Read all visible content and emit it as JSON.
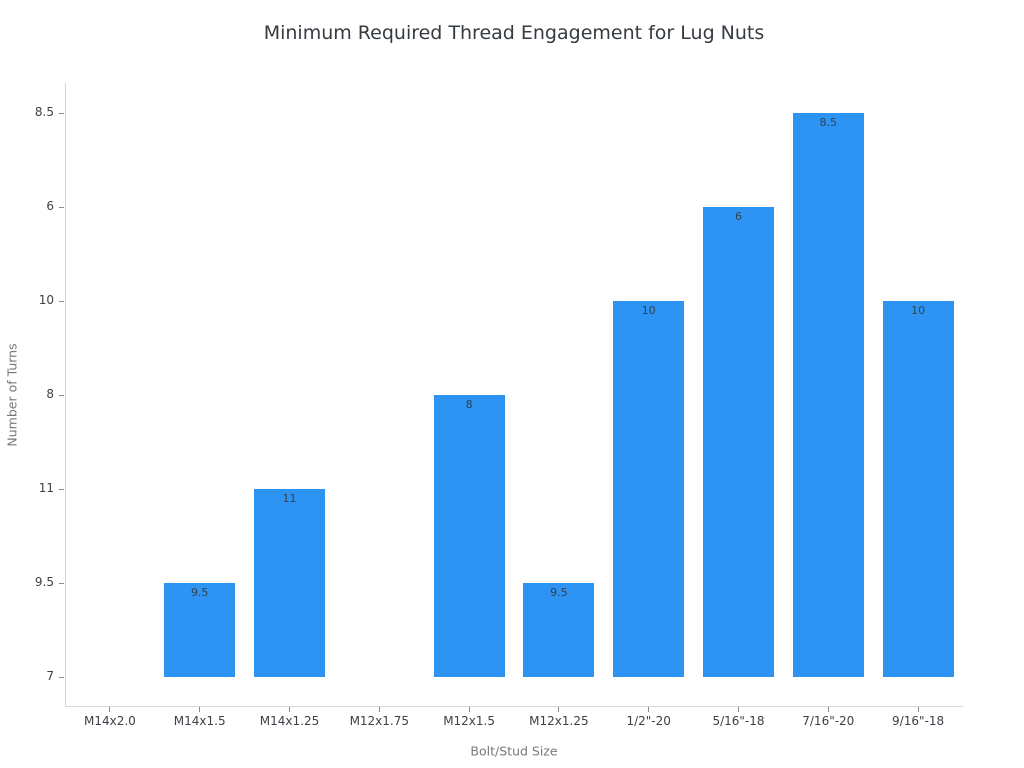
{
  "chart_data": {
    "type": "bar",
    "title": "Minimum Required Thread Engagement for Lug Nuts",
    "xlabel": "Bolt/Stud Size",
    "ylabel": "Number of Turns",
    "categories": [
      "M14x2.0",
      "M14x1.5",
      "M14x1.25",
      "M12x1.75",
      "M12x1.5",
      "M12x1.25",
      "1/2\"-20",
      "5/16\"-18",
      "7/16\"-20",
      "9/16\"-18"
    ],
    "values": [
      7,
      9.5,
      11,
      7,
      8,
      9.5,
      10,
      6,
      8.5,
      10
    ],
    "bar_labels": [
      "",
      "9.5",
      "11",
      "",
      "8",
      "9.5",
      "10",
      "6",
      "8.5",
      "10"
    ],
    "y_tick_labels_bottom_to_top": [
      "7",
      "9.5",
      "11",
      "8",
      "10",
      "6",
      "8.5"
    ],
    "bar_color": "#2e94f4",
    "grid": false,
    "legend_position": "none",
    "axis_note": "y-axis is categorical (values ordered by first appearance); bars whose value is the baseline category 7 have zero visible height"
  }
}
